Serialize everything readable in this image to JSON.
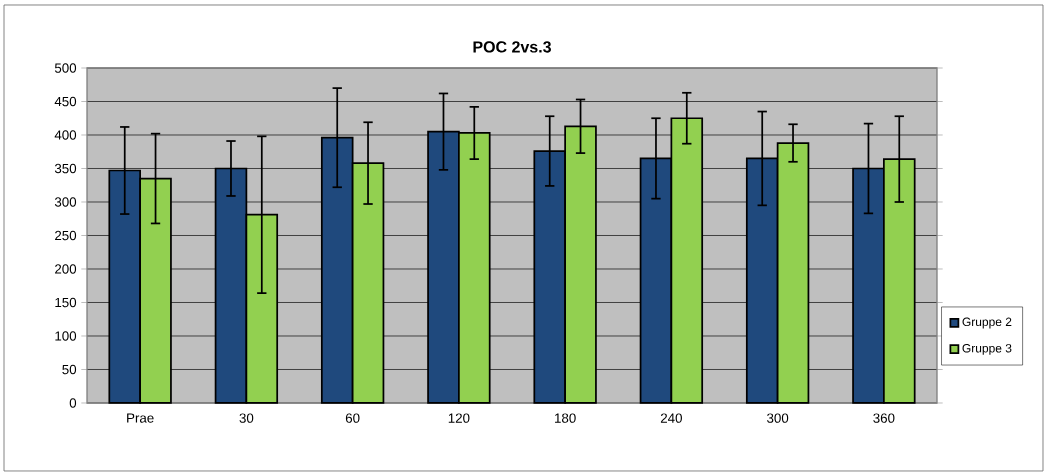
{
  "chart_data": {
    "type": "bar",
    "title": "POC 2vs.3",
    "categories": [
      "Prae",
      "30",
      "60",
      "120",
      "180",
      "240",
      "300",
      "360"
    ],
    "series": [
      {
        "name": "Gruppe 2",
        "color": "#1f497d",
        "values": [
          347,
          350,
          396,
          405,
          376,
          365,
          365,
          350
        ],
        "errors": [
          65,
          41,
          74,
          57,
          52,
          60,
          70,
          67
        ]
      },
      {
        "name": "Gruppe 3",
        "color": "#92d050",
        "values": [
          335,
          281,
          358,
          403,
          413,
          425,
          388,
          364
        ],
        "errors": [
          67,
          117,
          61,
          39,
          40,
          38,
          28,
          64
        ]
      }
    ],
    "ylim": [
      0,
      500
    ],
    "yticks": [
      0,
      50,
      100,
      150,
      200,
      250,
      300,
      350,
      400,
      450,
      500
    ],
    "grid": "y",
    "legend": "right"
  }
}
